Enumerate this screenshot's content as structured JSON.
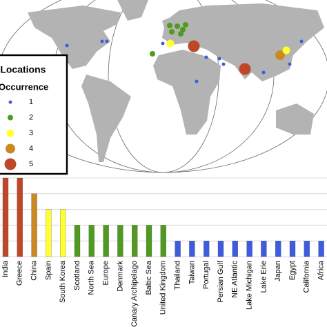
{
  "chart_data": {
    "type": "bar",
    "categories": [
      "India",
      "Greece",
      "China",
      "Spain",
      "South Korea",
      "Scotland",
      "North Sea",
      "Europe",
      "Denmark",
      "Canary Archipelago",
      "Baltic Sea",
      "United Kingdom",
      "Thailand",
      "Taiwan",
      "Portugal",
      "Persian Gulf",
      "NE Atlantic",
      "Lake Michigan",
      "Lake Erie",
      "Japan",
      "Egypt",
      "California",
      "Africa"
    ],
    "values": [
      5,
      5,
      4,
      3,
      3,
      2,
      2,
      2,
      2,
      2,
      2,
      2,
      1,
      1,
      1,
      1,
      1,
      1,
      1,
      1,
      1,
      1,
      1
    ],
    "ylim": [
      0,
      5
    ],
    "yticks": [
      0,
      1,
      2,
      3,
      4,
      5
    ],
    "grid": true,
    "legend": {
      "title": "Study Locations",
      "subtitle": "Occurrence",
      "levels": [
        1,
        2,
        3,
        4,
        5
      ],
      "colors": [
        "#3d5ce0",
        "#4f9a1f",
        "#ffff33",
        "#c98a24",
        "#c0462a"
      ]
    }
  }
}
